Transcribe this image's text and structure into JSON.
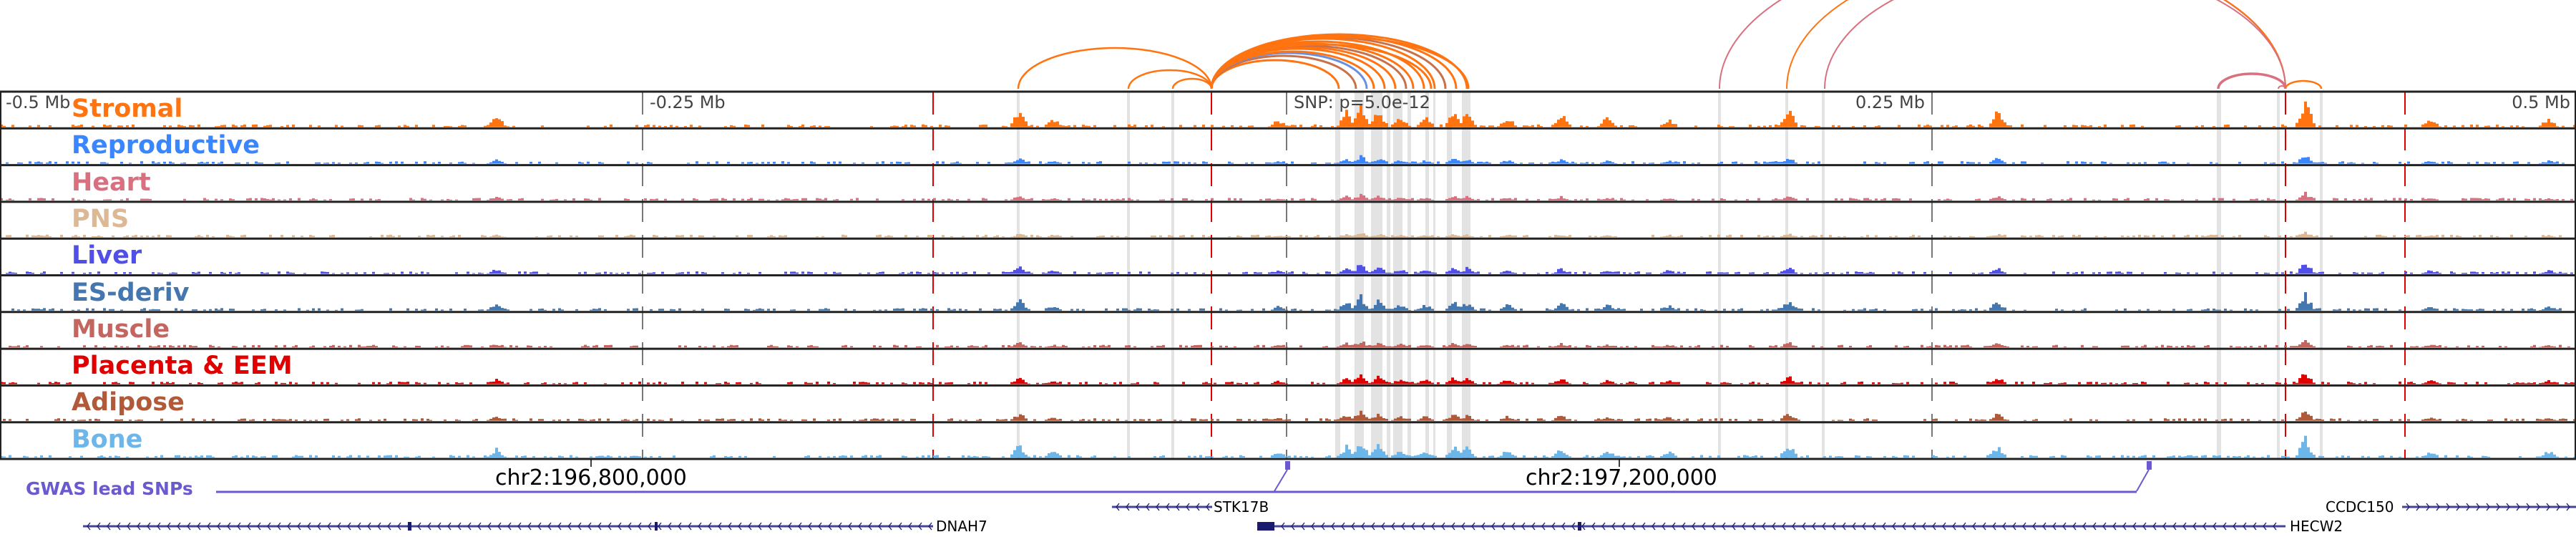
{
  "tracks": [
    {
      "label": "Stromal",
      "color": "#ff7410"
    },
    {
      "label": "Reproductive",
      "color": "#3a86ff"
    },
    {
      "label": "Heart",
      "color": "#d8707f"
    },
    {
      "label": "PNS",
      "color": "#ddb894"
    },
    {
      "label": "Liver",
      "color": "#5050e8"
    },
    {
      "label": "ES-deriv",
      "color": "#4477b0"
    },
    {
      "label": "Muscle",
      "color": "#c46660"
    },
    {
      "label": "Placenta & EEM",
      "color": "#e00000"
    },
    {
      "label": "Adipose",
      "color": "#b05a3a"
    },
    {
      "label": "Bone",
      "color": "#6cb6ea"
    }
  ],
  "ruler": {
    "left": "-0.5 Mb",
    "left_mid": "-0.25 Mb",
    "center": "SNP: p=5.0e-12",
    "right_mid": "0.25 Mb",
    "right": "0.5 Mb"
  },
  "coordinates": [
    "chr2:196,800,000",
    "chr2:197,200,000"
  ],
  "gwas": {
    "label": "GWAS lead SNPs",
    "color": "#6a5acd"
  },
  "genes": [
    {
      "name": "DNAH7",
      "strand": "-"
    },
    {
      "name": "STK17B",
      "strand": "-"
    },
    {
      "name": "CCDC150",
      "strand": "+"
    },
    {
      "name": "HECW2",
      "strand": "-"
    }
  ]
}
